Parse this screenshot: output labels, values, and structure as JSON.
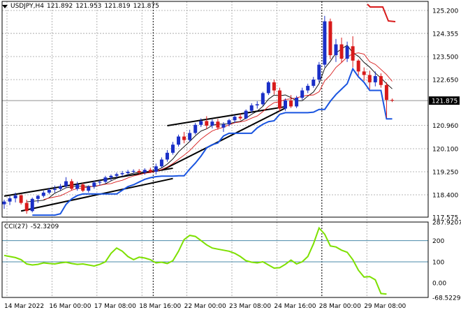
{
  "header": {
    "symbol_timeframe": "USDJPY,H4",
    "ohlc": [
      "121.892",
      "121.953",
      "121.819",
      "121.875"
    ]
  },
  "cci_header": {
    "name": "CCI(27)",
    "value": "-52.3209"
  },
  "colors": {
    "bull": "#1a2fc7",
    "bear": "#d81a1a",
    "grid": "#a0a0a0",
    "ma_fast": "#d81a1a",
    "ma_slow": "#000000",
    "stop_line": "#1a55e0",
    "cci_line": "#7de000",
    "cci_level": "#4a8aa8"
  },
  "chart_data": [
    {
      "type": "candlestick",
      "panel": "price",
      "symbol": "USDJPY",
      "timeframe": "H4",
      "yticks": [
        "125.200",
        "124.355",
        "123.500",
        "122.650",
        "121.875",
        "120.960",
        "120.100",
        "119.250",
        "118.400",
        "117.575"
      ],
      "ylim": [
        117.575,
        125.2
      ],
      "current_price": "121.875",
      "xlabels": [
        "14 Mar 2022",
        "16 Mar 00:00",
        "17 Mar 08:00",
        "18 Mar 16:00",
        "22 Mar 00:00",
        "23 Mar 08:00",
        "24 Mar 16:00",
        "28 Mar 00:00",
        "29 Mar 08:00"
      ],
      "xlabel_index": [
        0,
        8,
        16,
        24,
        32,
        40,
        48,
        56,
        64
      ],
      "candles": [
        [
          118.05,
          118.22,
          117.88,
          118.15
        ],
        [
          118.15,
          118.35,
          118.02,
          118.27
        ],
        [
          118.27,
          118.48,
          118.12,
          118.38
        ],
        [
          118.38,
          118.42,
          118.04,
          118.1
        ],
        [
          118.1,
          118.22,
          117.7,
          117.8
        ],
        [
          117.8,
          118.3,
          117.75,
          118.25
        ],
        [
          118.25,
          118.4,
          118.1,
          118.36
        ],
        [
          118.36,
          118.55,
          118.3,
          118.48
        ],
        [
          118.48,
          118.65,
          118.42,
          118.58
        ],
        [
          118.58,
          118.74,
          118.48,
          118.62
        ],
        [
          118.62,
          118.8,
          118.55,
          118.72
        ],
        [
          118.72,
          119.05,
          118.65,
          118.9
        ],
        [
          118.9,
          118.98,
          118.56,
          118.62
        ],
        [
          118.62,
          118.88,
          118.55,
          118.78
        ],
        [
          118.78,
          118.84,
          118.5,
          118.55
        ],
        [
          118.55,
          118.75,
          118.48,
          118.7
        ],
        [
          118.7,
          118.92,
          118.62,
          118.85
        ],
        [
          118.85,
          118.94,
          118.75,
          118.88
        ],
        [
          118.88,
          119.1,
          118.82,
          119.04
        ],
        [
          119.04,
          119.15,
          118.92,
          119.1
        ],
        [
          119.1,
          119.22,
          119.02,
          119.16
        ],
        [
          119.16,
          119.28,
          119.08,
          119.2
        ],
        [
          119.2,
          119.32,
          119.12,
          119.25
        ],
        [
          119.25,
          119.34,
          119.18,
          119.28
        ],
        [
          119.28,
          119.35,
          119.16,
          119.22
        ],
        [
          119.22,
          119.38,
          119.14,
          119.32
        ],
        [
          119.32,
          119.4,
          119.2,
          119.25
        ],
        [
          119.25,
          119.55,
          119.15,
          119.45
        ],
        [
          119.45,
          119.78,
          119.4,
          119.7
        ],
        [
          119.7,
          120.05,
          119.62,
          119.95
        ],
        [
          119.95,
          120.35,
          119.88,
          120.25
        ],
        [
          120.25,
          120.62,
          120.18,
          120.55
        ],
        [
          120.55,
          120.72,
          120.3,
          120.42
        ],
        [
          120.42,
          120.8,
          120.36,
          120.68
        ],
        [
          120.68,
          121.05,
          120.62,
          120.98
        ],
        [
          120.98,
          121.22,
          120.9,
          121.12
        ],
        [
          121.12,
          121.3,
          120.82,
          120.95
        ],
        [
          120.95,
          121.18,
          120.85,
          121.1
        ],
        [
          121.1,
          121.2,
          120.8,
          120.88
        ],
        [
          120.88,
          121.08,
          120.72,
          121.0
        ],
        [
          121.0,
          121.2,
          120.92,
          121.15
        ],
        [
          121.15,
          121.34,
          121.05,
          121.28
        ],
        [
          121.28,
          121.4,
          121.15,
          121.22
        ],
        [
          121.22,
          121.55,
          121.18,
          121.5
        ],
        [
          121.5,
          121.78,
          121.42,
          121.7
        ],
        [
          121.7,
          121.85,
          121.58,
          121.74
        ],
        [
          121.74,
          122.2,
          121.68,
          122.15
        ],
        [
          122.15,
          122.6,
          122.08,
          122.55
        ],
        [
          122.55,
          122.65,
          122.1,
          122.25
        ],
        [
          122.25,
          122.35,
          121.48,
          121.58
        ],
        [
          121.58,
          121.95,
          121.5,
          121.88
        ],
        [
          121.88,
          122.08,
          121.6,
          121.66
        ],
        [
          121.66,
          122.05,
          121.6,
          121.98
        ],
        [
          121.98,
          122.35,
          121.9,
          122.25
        ],
        [
          122.25,
          122.5,
          122.15,
          122.42
        ],
        [
          122.42,
          122.75,
          122.35,
          122.65
        ],
        [
          122.65,
          123.3,
          122.55,
          123.2
        ],
        [
          123.2,
          125.0,
          123.1,
          124.8
        ],
        [
          124.8,
          124.9,
          123.4,
          123.55
        ],
        [
          123.55,
          124.15,
          123.3,
          123.95
        ],
        [
          123.95,
          124.2,
          123.28,
          123.42
        ],
        [
          123.42,
          124.05,
          123.3,
          123.88
        ],
        [
          123.88,
          124.25,
          123.1,
          123.35
        ],
        [
          123.35,
          123.4,
          122.8,
          122.95
        ],
        [
          122.95,
          123.1,
          122.6,
          122.82
        ],
        [
          122.82,
          122.98,
          122.3,
          122.55
        ],
        [
          122.55,
          122.95,
          122.4,
          122.78
        ],
        [
          122.78,
          122.88,
          122.35,
          122.45
        ],
        [
          122.45,
          122.55,
          121.25,
          121.9
        ],
        [
          121.9,
          121.95,
          121.82,
          121.875
        ]
      ]
    },
    {
      "type": "line",
      "panel": "cci",
      "name": "CCI(27)",
      "yticks": [
        "287.9207",
        "200",
        "100",
        "0.00",
        "-68.5229"
      ],
      "levels": [
        200,
        100
      ],
      "ylim": [
        -68.5229,
        287.9207
      ],
      "values": [
        130,
        125,
        120,
        110,
        90,
        85,
        88,
        95,
        92,
        90,
        95,
        98,
        92,
        88,
        90,
        85,
        80,
        88,
        100,
        140,
        165,
        150,
        125,
        110,
        122,
        118,
        110,
        95,
        98,
        92,
        105,
        150,
        205,
        225,
        220,
        200,
        180,
        165,
        160,
        155,
        150,
        140,
        125,
        105,
        98,
        95,
        100,
        85,
        70,
        72,
        88,
        108,
        90,
        100,
        125,
        185,
        260,
        230,
        175,
        170,
        155,
        145,
        110,
        60,
        28,
        30,
        15,
        -50,
        -52.32
      ]
    }
  ]
}
